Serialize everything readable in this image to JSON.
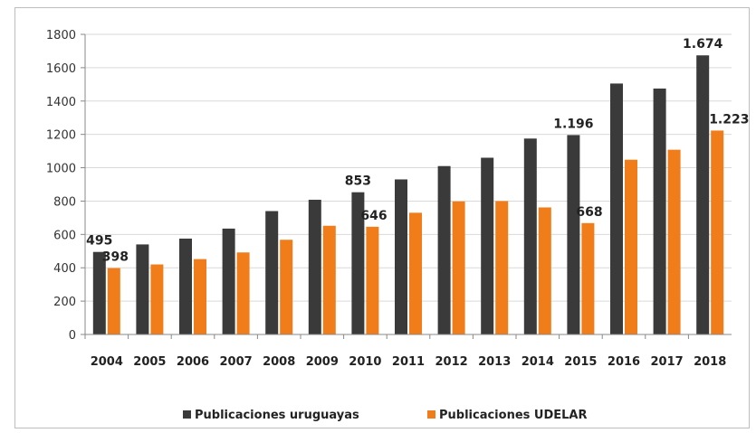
{
  "chart_data": {
    "type": "bar",
    "categories": [
      "2004",
      "2005",
      "2006",
      "2007",
      "2008",
      "2009",
      "2010",
      "2011",
      "2012",
      "2013",
      "2014",
      "2015",
      "2016",
      "2017",
      "2018"
    ],
    "series": [
      {
        "name": "Publicaciones uruguayas",
        "color": "#3a3a3a",
        "values": [
          495,
          540,
          575,
          635,
          740,
          808,
          853,
          930,
          1010,
          1060,
          1175,
          1196,
          1505,
          1475,
          1674
        ]
      },
      {
        "name": "Publicaciones UDELAR",
        "color": "#f07d1a",
        "values": [
          398,
          420,
          452,
          492,
          568,
          652,
          646,
          730,
          798,
          800,
          762,
          668,
          1048,
          1108,
          1223
        ]
      }
    ],
    "data_labels": [
      {
        "series": 0,
        "index": 0,
        "text": "495"
      },
      {
        "series": 1,
        "index": 0,
        "text": "398"
      },
      {
        "series": 0,
        "index": 6,
        "text": "853"
      },
      {
        "series": 1,
        "index": 6,
        "text": "646"
      },
      {
        "series": 0,
        "index": 11,
        "text": "1.196"
      },
      {
        "series": 1,
        "index": 11,
        "text": "668"
      },
      {
        "series": 0,
        "index": 14,
        "text": "1.674"
      },
      {
        "series": 1,
        "index": 14,
        "text": "1.223"
      }
    ],
    "yticks": [
      "0",
      "200",
      "400",
      "600",
      "800",
      "1000",
      "1200",
      "1400",
      "1600",
      "1800"
    ],
    "ylim": [
      0,
      1800
    ],
    "grid": true,
    "legend_position": "bottom",
    "title": "",
    "xlabel": "",
    "ylabel": ""
  }
}
